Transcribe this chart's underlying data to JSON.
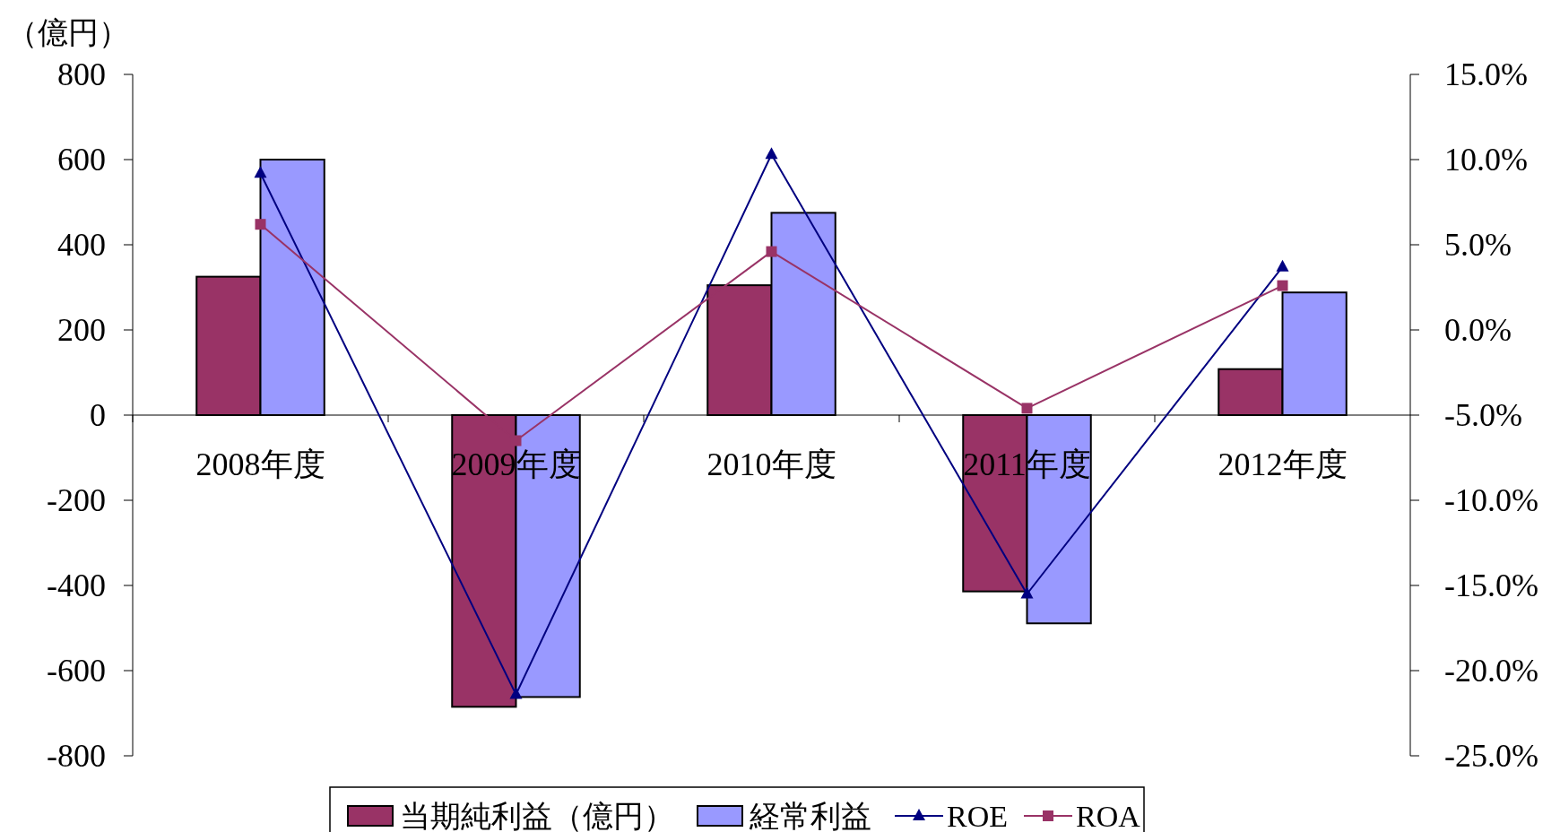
{
  "chart_data": {
    "type": "bar",
    "ylabel": "（億円）",
    "categories": [
      "2008年度",
      "2009年度",
      "2010年度",
      "2011年度",
      "2012年度"
    ],
    "series": [
      {
        "name": "当期純利益（億円）",
        "color": "#993366",
        "values": [
          325,
          -685,
          305,
          -414,
          108
        ]
      },
      {
        "name": "経常利益",
        "color": "#9999ff",
        "values": [
          600,
          -662,
          475,
          -489,
          288
        ]
      },
      {
        "name": "ROE",
        "type": "line",
        "axis": "y2",
        "color": "#000080",
        "marker": "triangle",
        "values": [
          9.2,
          -21.4,
          10.3,
          -15.5,
          3.7
        ]
      },
      {
        "name": "ROA",
        "type": "line",
        "axis": "y2",
        "color": "#993366",
        "marker": "square",
        "values": [
          6.2,
          -6.5,
          4.6,
          -4.6,
          2.6
        ]
      }
    ],
    "ylim": [
      -800,
      800
    ],
    "yticks": [
      -800,
      -600,
      -400,
      -200,
      0,
      200,
      400,
      600,
      800
    ],
    "y2lim": [
      -25,
      15
    ],
    "y2ticks": [
      {
        "value": -25,
        "label": "-25.0%"
      },
      {
        "value": -20,
        "label": "-20.0%"
      },
      {
        "value": -15,
        "label": "-15.0%"
      },
      {
        "value": -10,
        "label": "-10.0%"
      },
      {
        "value": -5,
        "label": "-5.0%"
      },
      {
        "value": 0,
        "label": "0.0%"
      },
      {
        "value": 5,
        "label": "5.0%"
      },
      {
        "value": 10,
        "label": "10.0%"
      },
      {
        "value": 15,
        "label": "15.0%"
      }
    ],
    "legend": "bottom",
    "grid": false
  }
}
